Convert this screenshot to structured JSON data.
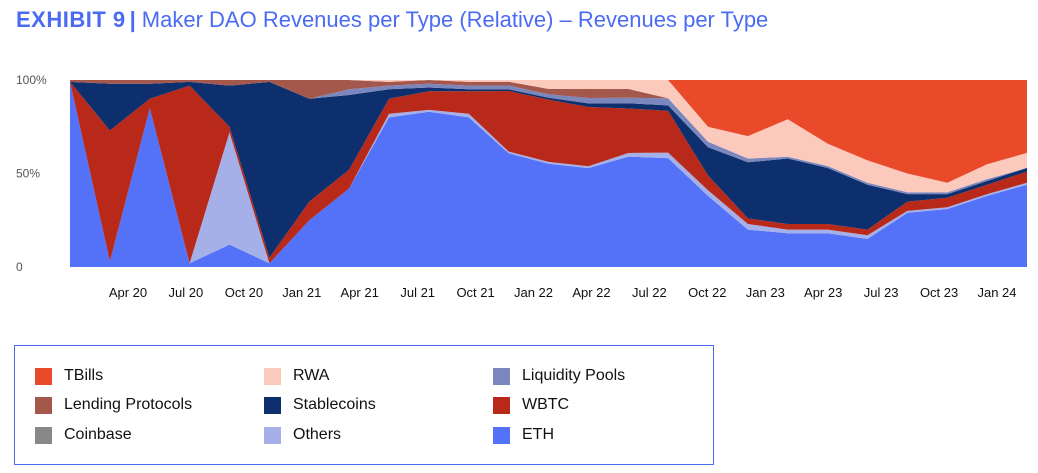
{
  "header": {
    "exhibit": "EXHIBIT 9",
    "separator": "|",
    "title": "Maker DAO Revenues per Type (Relative) – Revenues per Type"
  },
  "legend": [
    {
      "key": "tbills",
      "label": "TBills",
      "color": "#e84a2a"
    },
    {
      "key": "rwa",
      "label": "RWA",
      "color": "#fcc9bd"
    },
    {
      "key": "liquidity_pools",
      "label": "Liquidity Pools",
      "color": "#7b86bd"
    },
    {
      "key": "lending_protocols",
      "label": "Lending Protocols",
      "color": "#a4584c"
    },
    {
      "key": "stablecoins",
      "label": "Stablecoins",
      "color": "#0d2f6e"
    },
    {
      "key": "wbtc",
      "label": "WBTC",
      "color": "#b8291a"
    },
    {
      "key": "coinbase",
      "label": "Coinbase",
      "color": "#888888"
    },
    {
      "key": "others",
      "label": "Others",
      "color": "#a6b0e8"
    },
    {
      "key": "eth",
      "label": "ETH",
      "color": "#5472f7"
    }
  ],
  "chart_data": {
    "type": "area",
    "stacked": true,
    "normalized": true,
    "ylim": [
      0,
      100
    ],
    "y_ticks": [
      "0",
      "50%",
      "100%"
    ],
    "x_ticks": [
      "Apr 20",
      "Jul 20",
      "Oct 20",
      "Jan 21",
      "Apr 21",
      "Jul 21",
      "Oct 21",
      "Jan 22",
      "Apr 22",
      "Jul 22",
      "Oct 22",
      "Jan 23",
      "Apr 23",
      "Jul 23",
      "Oct 23",
      "Jan 24"
    ],
    "x": [
      "Feb 20",
      "Apr 20",
      "May 20",
      "Jul 20",
      "Aug 20",
      "Oct 20",
      "Nov 20",
      "Jan 21",
      "Apr 21",
      "Jul 21",
      "Oct 21",
      "Jan 22",
      "Apr 22",
      "Jun 22",
      "Jul 22",
      "Sep 22",
      "Oct 22",
      "Nov 22",
      "Jan 23",
      "Apr 23",
      "Jun 23",
      "Jul 23",
      "Oct 23",
      "Jan 24",
      "Mar 24"
    ],
    "stack_order": [
      "eth",
      "others",
      "coinbase",
      "wbtc",
      "stablecoins",
      "liquidity_pools",
      "lending_protocols",
      "rwa",
      "tbills"
    ],
    "series": [
      {
        "key": "eth",
        "name": "ETH",
        "values": [
          99,
          3,
          85,
          2,
          12,
          2,
          25,
          42,
          80,
          83,
          80,
          62,
          58,
          55,
          62,
          60,
          38,
          20,
          18,
          18,
          15,
          29,
          31,
          38,
          44
        ]
      },
      {
        "key": "others",
        "name": "Others",
        "values": [
          0,
          0,
          0,
          0,
          60,
          0,
          0,
          0,
          2,
          1,
          2,
          1,
          1,
          1,
          2,
          3,
          3,
          3,
          2,
          2,
          2,
          1,
          1,
          1,
          1
        ]
      },
      {
        "key": "coinbase",
        "name": "Coinbase",
        "values": [
          0,
          0,
          0,
          0,
          0,
          0,
          0,
          0,
          0,
          0,
          0,
          0,
          0,
          0,
          0,
          0,
          0,
          0,
          0,
          0,
          0,
          0,
          0,
          0,
          0
        ]
      },
      {
        "key": "wbtc",
        "name": "WBTC",
        "values": [
          0,
          70,
          5,
          95,
          3,
          3,
          10,
          10,
          8,
          10,
          12,
          33,
          35,
          33,
          25,
          23,
          8,
          3,
          3,
          3,
          3,
          5,
          5,
          5,
          6
        ]
      },
      {
        "key": "stablecoins",
        "name": "Stablecoins",
        "values": [
          0,
          25,
          8,
          2,
          22,
          94,
          55,
          40,
          5,
          2,
          1,
          1,
          1,
          2,
          3,
          3,
          15,
          30,
          35,
          30,
          24,
          4,
          2,
          2,
          2
        ]
      },
      {
        "key": "liquidity_pools",
        "name": "Liquidity Pools",
        "values": [
          0,
          0,
          0,
          0,
          0,
          0,
          0,
          3,
          2,
          2,
          2,
          2,
          2,
          3,
          3,
          4,
          3,
          2,
          1,
          1,
          1,
          1,
          1,
          1,
          0
        ]
      },
      {
        "key": "lending_protocols",
        "name": "Lending Protocols",
        "values": [
          1,
          2,
          2,
          1,
          3,
          1,
          10,
          5,
          2,
          2,
          2,
          2,
          3,
          5,
          5,
          0,
          0,
          0,
          0,
          0,
          0,
          0,
          0,
          0,
          0
        ]
      },
      {
        "key": "rwa",
        "name": "RWA",
        "values": [
          0,
          0,
          0,
          0,
          0,
          0,
          0,
          0,
          1,
          0,
          1,
          1,
          5,
          5,
          5,
          10,
          8,
          12,
          20,
          12,
          12,
          10,
          5,
          8,
          8
        ]
      },
      {
        "key": "tbills",
        "name": "TBills",
        "values": [
          0,
          0,
          0,
          0,
          0,
          0,
          0,
          0,
          0,
          0,
          0,
          0,
          0,
          0,
          0,
          0,
          25,
          30,
          21,
          34,
          43,
          50,
          55,
          45,
          39
        ]
      }
    ]
  }
}
